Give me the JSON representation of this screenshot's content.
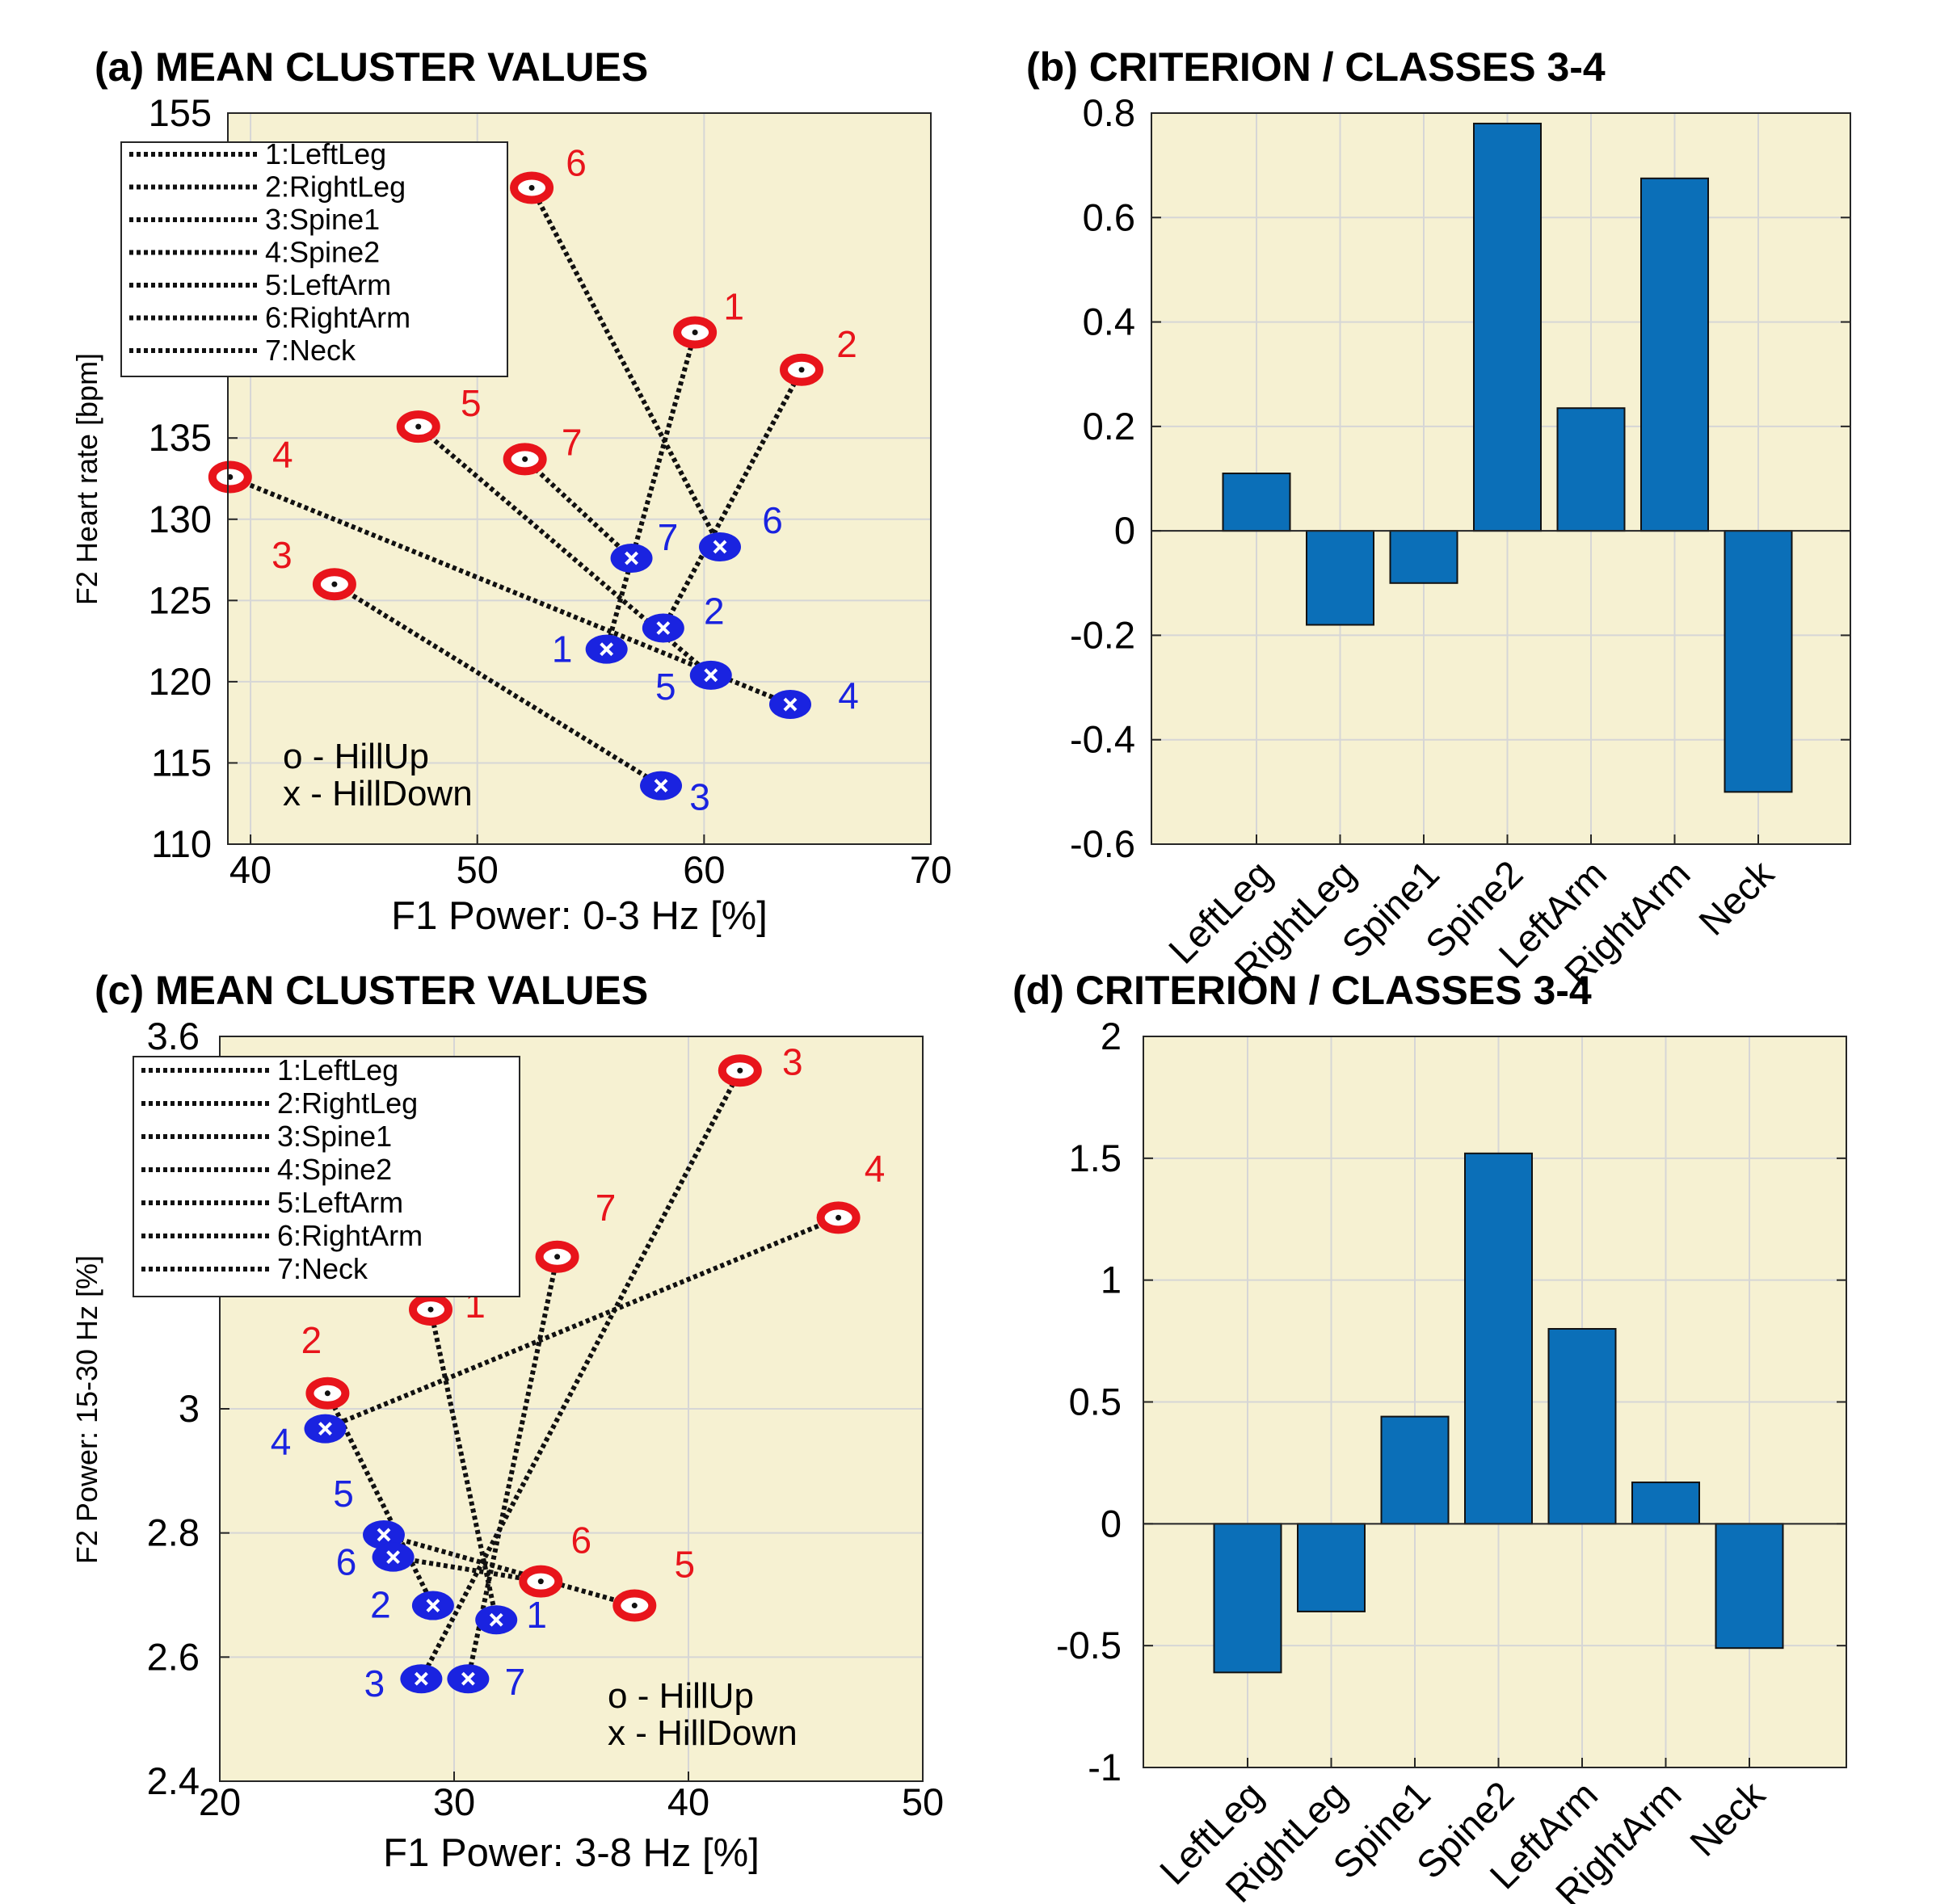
{
  "colors": {
    "axes_bg": "#f6f1d2",
    "bar": "#0b6fb8",
    "hill_up": "#e8141b",
    "hill_down": "#1a23e0",
    "grid": "#d6d6d6"
  },
  "chart_data": [
    {
      "id": "a",
      "type": "scatter",
      "title": "(a) MEAN CLUSTER VALUES",
      "xlabel": "F1 Power: 0-3 Hz [%]",
      "ylabel": "F2 Heart rate [bpm]",
      "xlim": [
        39,
        70
      ],
      "ylim": [
        110,
        155
      ],
      "xticks": [
        40,
        50,
        60,
        70
      ],
      "yticks": [
        110,
        115,
        120,
        125,
        130,
        135,
        155
      ],
      "legend": [
        "1:LeftLeg",
        "2:RightLeg",
        "3:Spine1",
        "4:Spine2",
        "5:LeftArm",
        "6:RightArm",
        "7:Neck"
      ],
      "legend_position": "top-left",
      "marker_note": [
        "o - HillUp",
        "x - HillDown"
      ],
      "series": [
        {
          "name": "1",
          "hill_up": [
            59.6,
            141.5
          ],
          "hill_down": [
            55.7,
            122.0
          ]
        },
        {
          "name": "2",
          "hill_up": [
            64.3,
            139.2
          ],
          "hill_down": [
            58.2,
            123.3
          ]
        },
        {
          "name": "3",
          "hill_up": [
            43.7,
            126.0
          ],
          "hill_down": [
            58.1,
            113.6
          ]
        },
        {
          "name": "4",
          "hill_up": [
            39.1,
            132.6
          ],
          "hill_down": [
            63.8,
            118.6
          ]
        },
        {
          "name": "5",
          "hill_up": [
            47.4,
            135.7
          ],
          "hill_down": [
            60.3,
            120.4
          ]
        },
        {
          "name": "6",
          "hill_up": [
            52.4,
            150.4
          ],
          "hill_down": [
            60.7,
            128.3
          ]
        },
        {
          "name": "7",
          "hill_up": [
            52.1,
            133.7
          ],
          "hill_down": [
            56.8,
            127.6
          ]
        }
      ]
    },
    {
      "id": "b",
      "type": "bar",
      "title": "(b) CRITERION / CLASSES 3-4",
      "categories": [
        "LeftLeg",
        "RightLeg",
        "Spine1",
        "Spine2",
        "LeftArm",
        "RightArm",
        "Neck"
      ],
      "values": [
        0.11,
        -0.18,
        -0.1,
        0.78,
        0.235,
        0.675,
        -0.5
      ],
      "ylim": [
        -0.6,
        0.8
      ],
      "yticks": [
        -0.6,
        -0.4,
        -0.2,
        0,
        0.2,
        0.4,
        0.6,
        0.8
      ],
      "yticklabels": [
        "-0.6",
        "-0.4",
        "-0.2",
        "0",
        "0.2",
        "0.4",
        "0.6",
        "0.8"
      ]
    },
    {
      "id": "c",
      "type": "scatter",
      "title": "(c) MEAN CLUSTER VALUES",
      "xlabel": "F1 Power: 3-8 Hz [%]",
      "ylabel": "F2 Power: 15-30 Hz [%]",
      "xlim": [
        20,
        50
      ],
      "ylim": [
        2.4,
        3.6
      ],
      "xticks": [
        20,
        30,
        40,
        50
      ],
      "yticks": [
        2.4,
        2.6,
        2.8,
        3,
        3.6
      ],
      "yticklabels": [
        "2.4",
        "2.6",
        "2.8",
        "3",
        "3.6"
      ],
      "legend": [
        "1:LeftLeg",
        "2:RightLeg",
        "3:Spine1",
        "4:Spine2",
        "5:LeftArm",
        "6:RightArm",
        "7:Neck"
      ],
      "legend_position": "top-left",
      "marker_note": [
        "o - HillUp",
        "x - HillDown"
      ],
      "series": [
        {
          "name": "1",
          "hill_up": [
            29.0,
            3.16
          ],
          "hill_down": [
            31.8,
            2.66
          ]
        },
        {
          "name": "2",
          "hill_up": [
            24.6,
            3.025
          ],
          "hill_down": [
            29.1,
            2.683
          ]
        },
        {
          "name": "3",
          "hill_up": [
            42.2,
            3.545
          ],
          "hill_down": [
            28.6,
            2.565
          ]
        },
        {
          "name": "4",
          "hill_up": [
            46.4,
            3.308
          ],
          "hill_down": [
            24.5,
            2.968
          ]
        },
        {
          "name": "5",
          "hill_up": [
            37.7,
            2.683
          ],
          "hill_down": [
            27.0,
            2.797
          ]
        },
        {
          "name": "6",
          "hill_up": [
            33.7,
            2.722
          ],
          "hill_down": [
            27.4,
            2.761
          ]
        },
        {
          "name": "7",
          "hill_up": [
            34.4,
            3.245
          ],
          "hill_down": [
            30.6,
            2.565
          ]
        }
      ]
    },
    {
      "id": "d",
      "type": "bar",
      "title": "(d) CRITERION / CLASSES 3-4",
      "categories": [
        "LeftLeg",
        "RightLeg",
        "Spine1",
        "Spine2",
        "LeftArm",
        "RightArm",
        "Neck"
      ],
      "values": [
        -0.61,
        -0.36,
        0.44,
        1.52,
        0.8,
        0.17,
        -0.51
      ],
      "ylim": [
        -1,
        2
      ],
      "yticks": [
        -1,
        -0.5,
        0,
        0.5,
        1,
        1.5,
        2
      ],
      "yticklabels": [
        "-1",
        "-0.5",
        "0",
        "0.5",
        "1",
        "1.5",
        "2"
      ]
    }
  ]
}
